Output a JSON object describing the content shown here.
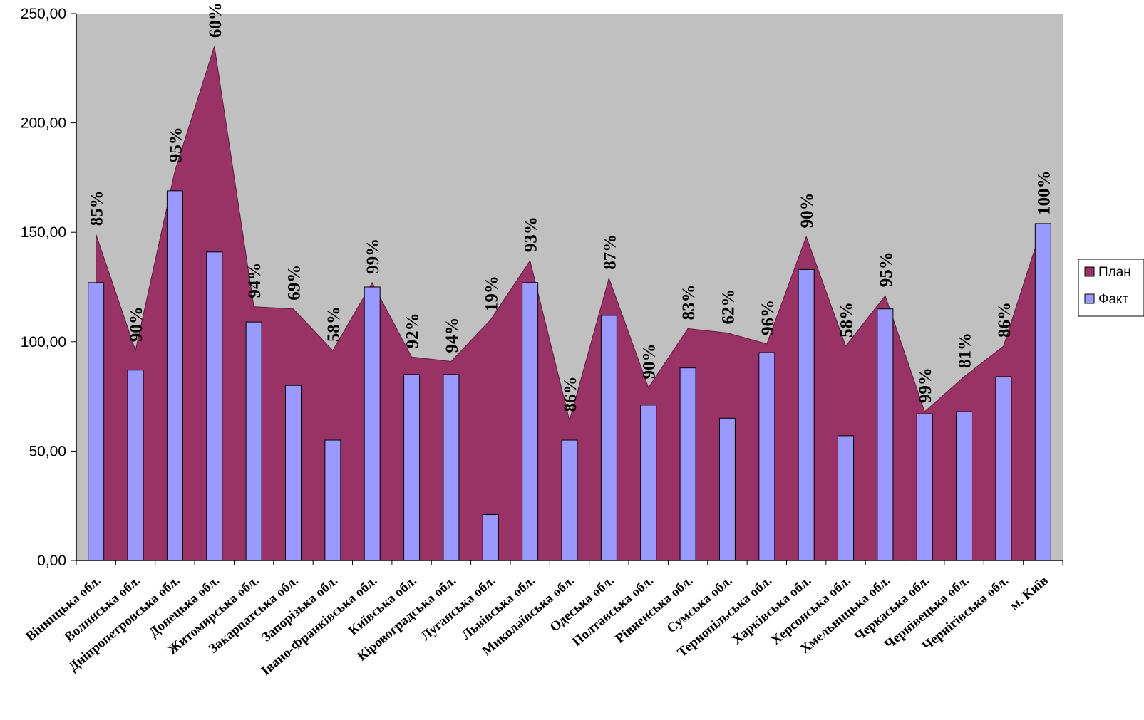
{
  "chart_data": {
    "type": "bar",
    "overlay": "area",
    "categories": [
      "Вінницька обл.",
      "Волинська обл.",
      "Дніпропетровська обл.",
      "Донецька обл.",
      "Житомирська обл.",
      "Закарпатська обл.",
      "Запорізька обл.",
      "Івано-Франківська обл.",
      "Київська обл.",
      "Кіровоградська обл.",
      "Луганська обл.",
      "Львівська обл.",
      "Миколаївська обл.",
      "Одеська обл.",
      "Полтавська обл.",
      "Рівненська обл.",
      "Сумська обл.",
      "Тернопільська обл.",
      "Харківська обл.",
      "Херсонська обл.",
      "Хмельницька обл.",
      "Черкаська обл.",
      "Чернівецька обл.",
      "Чернігівська обл.",
      "м. Київ"
    ],
    "series": [
      {
        "name": "План",
        "type": "area",
        "color": "#993366",
        "values": [
          149,
          96,
          178,
          235,
          116,
          115,
          96,
          127,
          93,
          91,
          110,
          137,
          64,
          129,
          79,
          106,
          104,
          99,
          148,
          98,
          121,
          68,
          84,
          98,
          154
        ]
      },
      {
        "name": "Факт",
        "type": "bar",
        "color": "#9999ff",
        "values": [
          127,
          87,
          169,
          141,
          109,
          80,
          55,
          125,
          85,
          85,
          21,
          127,
          55,
          112,
          71,
          88,
          65,
          95,
          133,
          57,
          115,
          67,
          68,
          84,
          154
        ]
      }
    ],
    "data_labels": [
      "85%",
      "90%",
      "95%",
      "60%",
      "94%",
      "69%",
      "58%",
      "99%",
      "92%",
      "94%",
      "19%",
      "93%",
      "86%",
      "87%",
      "90%",
      "83%",
      "62%",
      "96%",
      "90%",
      "58%",
      "95%",
      "99%",
      "81%",
      "86%",
      "100%"
    ],
    "y_ticks": [
      "0,00",
      "50,00",
      "100,00",
      "150,00",
      "200,00",
      "250,00"
    ],
    "ylim": [
      0,
      250
    ],
    "plot_background": "#c0c0c0",
    "legend_position": "right",
    "grid": false
  }
}
